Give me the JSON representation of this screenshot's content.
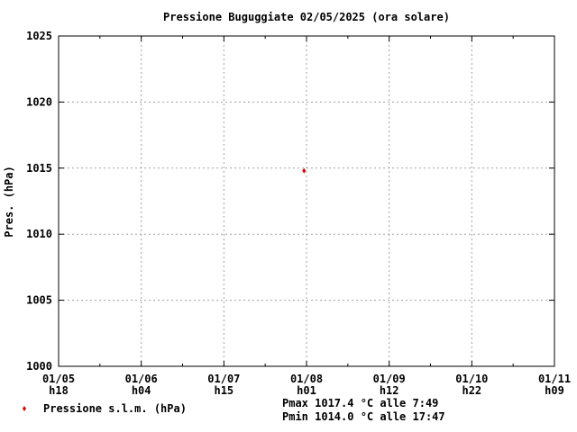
{
  "chart_data": {
    "type": "scatter",
    "title": "Pressione Buguggiate 02/05/2025 (ora solare)",
    "ylabel": "Pres. (hPa)",
    "xlabel": "",
    "ylim": [
      1000,
      1025
    ],
    "yticks": [
      1000,
      1005,
      1010,
      1015,
      1020,
      1025
    ],
    "xticks": [
      {
        "date": "01/05",
        "hour": "h18"
      },
      {
        "date": "01/06",
        "hour": "h04"
      },
      {
        "date": "01/07",
        "hour": "h15"
      },
      {
        "date": "01/08",
        "hour": "h01"
      },
      {
        "date": "01/09",
        "hour": "h12"
      },
      {
        "date": "01/10",
        "hour": "h22"
      },
      {
        "date": "01/11",
        "hour": "h09"
      }
    ],
    "grid": true,
    "legend_placement": "bottom-left",
    "series": [
      {
        "name": "Pressione s.l.m. (hPa)",
        "color": "#dd0000",
        "points": [
          {
            "x": 2.97,
            "y": 1014.8
          }
        ]
      }
    ],
    "stats": {
      "pmax": "Pmax 1017.4 °C alle 7:49",
      "pmin": "Pmin 1014.0 °C alle 17:47"
    }
  }
}
